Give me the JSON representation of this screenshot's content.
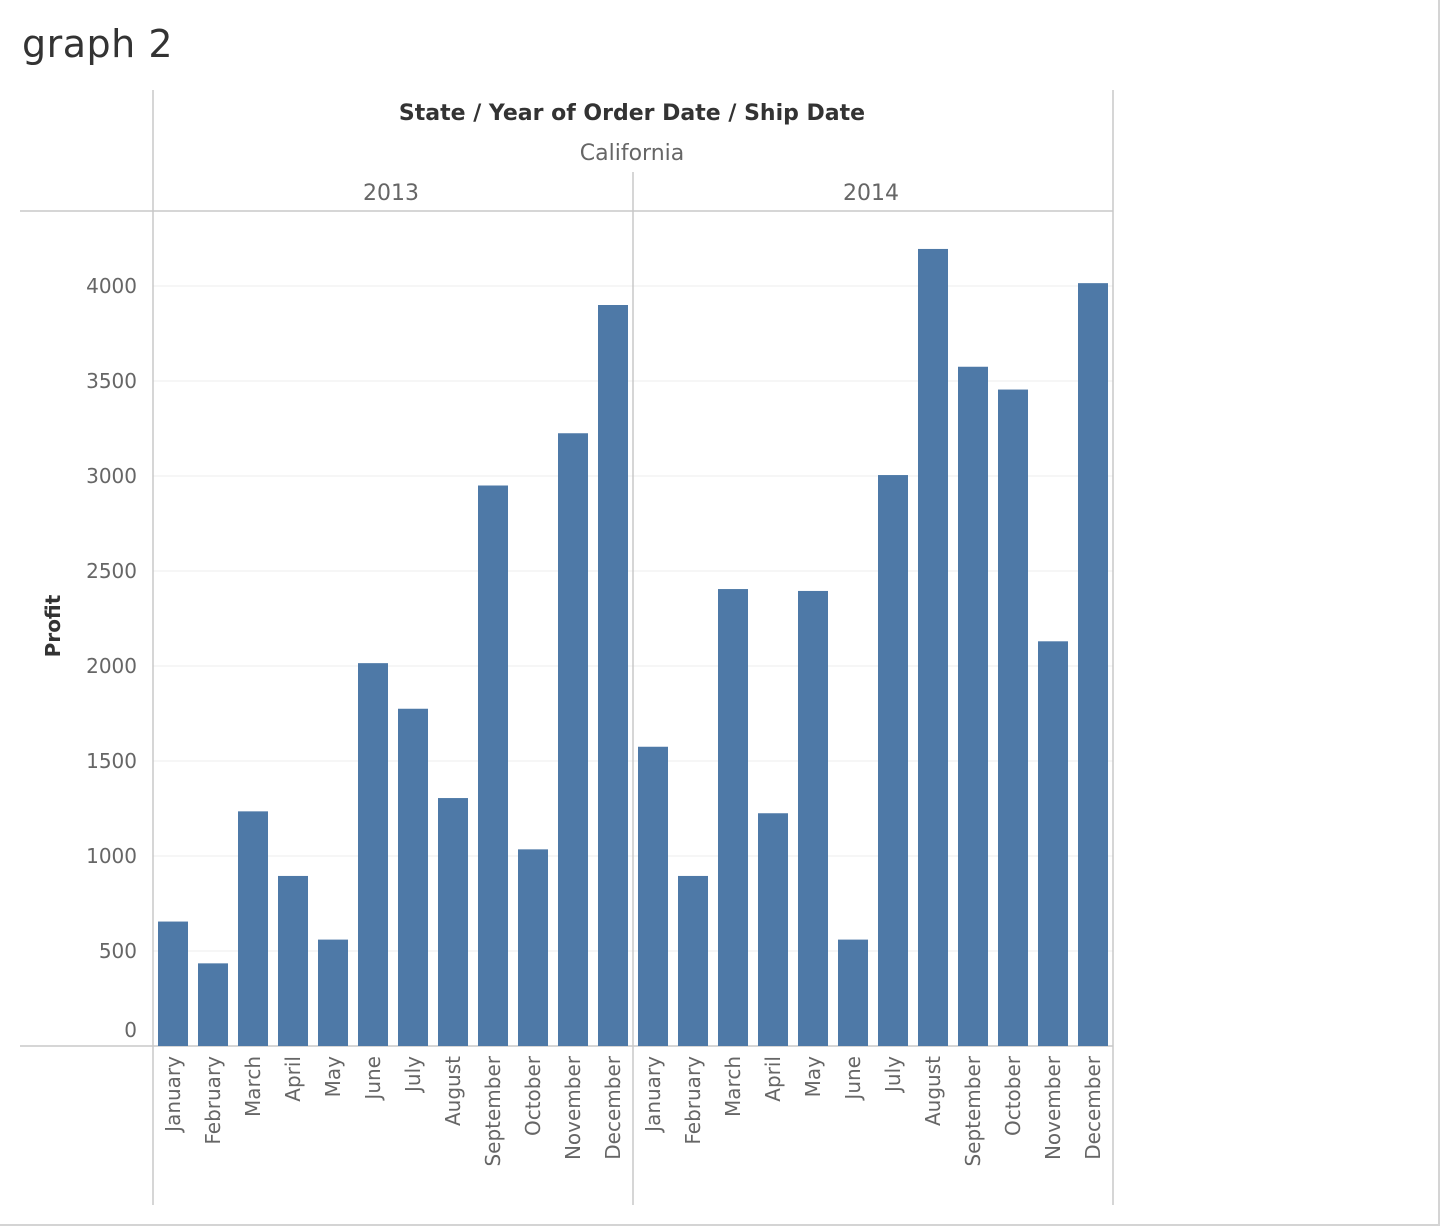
{
  "page": {
    "title": "graph 2"
  },
  "chart_data": {
    "type": "bar",
    "title": "",
    "header_title": "State / Year of Order Date / Ship Date",
    "state": "California",
    "ylabel": "Profit",
    "xlabel": "",
    "ylim": [
      0,
      4300
    ],
    "yticks": [
      0,
      500,
      1000,
      1500,
      2000,
      2500,
      3000,
      3500,
      4000
    ],
    "grid": true,
    "bar_color": "#4e79a7",
    "categories": [
      "January",
      "February",
      "March",
      "April",
      "May",
      "June",
      "July",
      "August",
      "September",
      "October",
      "November",
      "December"
    ],
    "panels": [
      {
        "year": "2013",
        "values": [
          655,
          435,
          1235,
          895,
          560,
          2015,
          1775,
          1305,
          2950,
          1035,
          3225,
          3900
        ]
      },
      {
        "year": "2014",
        "values": [
          1575,
          895,
          2405,
          1225,
          2395,
          560,
          3005,
          4195,
          3575,
          3455,
          2130,
          4015
        ]
      }
    ]
  }
}
